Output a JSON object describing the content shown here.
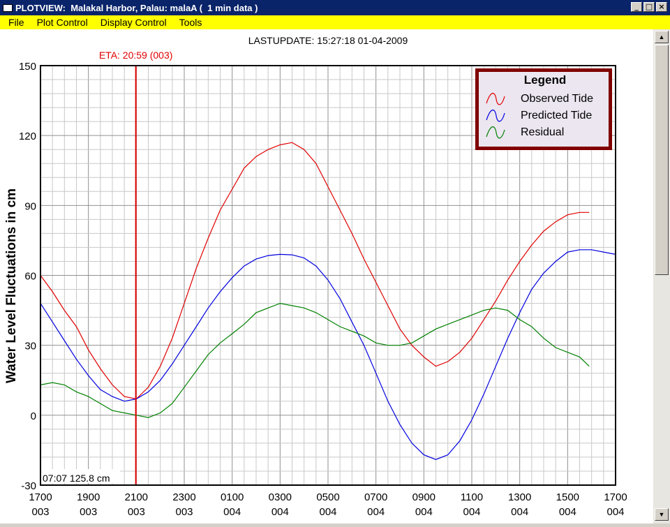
{
  "window": {
    "title": "PLOTVIEW:  Malakal Harbor, Palau: malaA (  1 min data )",
    "controls": {
      "minimize": "_",
      "maximize": "□",
      "close": "×"
    }
  },
  "menu": [
    "File",
    "Plot Control",
    "Display Control",
    "Tools"
  ],
  "plot": {
    "last_update": "LASTUPDATE: 15:27:18  01-04-2009",
    "eta_label": "ETA: 20:59 (003)",
    "cursor_readout": "07:07 125.8 cm"
  },
  "legend": {
    "title": "Legend",
    "items": [
      {
        "label": "Observed Tide",
        "color": "#e00000"
      },
      {
        "label": "Predicted Tide",
        "color": "#0000e0"
      },
      {
        "label": "Residual",
        "color": "#008000"
      }
    ]
  },
  "chart_data": {
    "type": "line",
    "ylabel": "Water Level Fluctuations in cm",
    "ylim": [
      -30,
      150
    ],
    "yticks": [
      150,
      120,
      90,
      60,
      30,
      0,
      -30
    ],
    "xlim": [
      0,
      24
    ],
    "x_unit": "hours after 1700 day 003",
    "xticks": [
      {
        "time": "1700",
        "day": "003"
      },
      {
        "time": "1900",
        "day": "003"
      },
      {
        "time": "2100",
        "day": "003"
      },
      {
        "time": "2300",
        "day": "003"
      },
      {
        "time": "0100",
        "day": "004"
      },
      {
        "time": "0300",
        "day": "004"
      },
      {
        "time": "0500",
        "day": "004"
      },
      {
        "time": "0700",
        "day": "004"
      },
      {
        "time": "0900",
        "day": "004"
      },
      {
        "time": "1100",
        "day": "004"
      },
      {
        "time": "1300",
        "day": "004"
      },
      {
        "time": "1500",
        "day": "004"
      },
      {
        "time": "1700",
        "day": "004"
      }
    ],
    "eta_x": 3.98,
    "grid": true,
    "legend_position": "top-right",
    "series": [
      {
        "name": "Observed Tide",
        "color": "#e00000",
        "x": [
          0,
          0.5,
          1,
          1.5,
          2,
          2.5,
          3,
          3.5,
          4,
          4.5,
          5,
          5.5,
          6,
          6.5,
          7,
          7.5,
          8,
          8.5,
          9,
          9.5,
          10,
          10.5,
          11,
          11.5,
          12,
          12.5,
          13,
          13.5,
          14,
          14.5,
          15,
          15.5,
          16,
          16.5,
          17,
          17.5,
          18,
          18.5,
          19,
          19.5,
          20,
          20.5,
          21,
          21.5,
          22,
          22.5,
          22.9
        ],
        "y": [
          60,
          53,
          45,
          38,
          28,
          20,
          13,
          8,
          7,
          12,
          21,
          33,
          48,
          63,
          76,
          88,
          97,
          106,
          111,
          114,
          116,
          117,
          114,
          108,
          98,
          88,
          78,
          67,
          57,
          47,
          37,
          30,
          25,
          21,
          23,
          27,
          33,
          41,
          49,
          58,
          66,
          73,
          79,
          83,
          86,
          87,
          87
        ]
      },
      {
        "name": "Predicted Tide",
        "color": "#0000e0",
        "x": [
          0,
          0.5,
          1,
          1.5,
          2,
          2.5,
          3,
          3.5,
          4,
          4.5,
          5,
          5.5,
          6,
          6.5,
          7,
          7.5,
          8,
          8.5,
          9,
          9.5,
          10,
          10.5,
          11,
          11.5,
          12,
          12.5,
          13,
          13.5,
          14,
          14.5,
          15,
          15.5,
          16,
          16.5,
          17,
          17.5,
          18,
          18.5,
          19,
          19.5,
          20,
          20.5,
          21,
          21.5,
          22,
          22.5,
          23,
          23.5,
          24
        ],
        "y": [
          48,
          40,
          32,
          24,
          17,
          11,
          8,
          6,
          7,
          10,
          15,
          22,
          30,
          38,
          46,
          53,
          59,
          64,
          67,
          68.5,
          69,
          68.8,
          67.5,
          64,
          58,
          50,
          40,
          30,
          18,
          6,
          -4,
          -12,
          -17,
          -19,
          -17,
          -11,
          -2,
          9,
          21,
          33,
          44,
          54,
          61,
          66,
          70,
          71,
          71,
          70,
          69
        ]
      },
      {
        "name": "Residual",
        "color": "#008000",
        "x": [
          0,
          0.5,
          1,
          1.5,
          2,
          2.5,
          3,
          3.5,
          4,
          4.5,
          5,
          5.5,
          6,
          6.5,
          7,
          7.5,
          8,
          8.5,
          9,
          9.5,
          10,
          10.5,
          11,
          11.5,
          12,
          12.5,
          13,
          13.5,
          14,
          14.5,
          15,
          15.5,
          16,
          16.5,
          17,
          17.5,
          18,
          18.5,
          19,
          19.5,
          20,
          20.5,
          21,
          21.5,
          22,
          22.5,
          22.9
        ],
        "y": [
          13,
          14,
          13,
          10,
          8,
          5,
          2,
          1,
          0,
          -1,
          1,
          5,
          12,
          19,
          26,
          31,
          35,
          39,
          44,
          46,
          48,
          47,
          46,
          44,
          41,
          38,
          36,
          34,
          31,
          30,
          30,
          31,
          34,
          37,
          39,
          41,
          43,
          45,
          46,
          45,
          41,
          38,
          33,
          29,
          27,
          25,
          21
        ]
      }
    ]
  }
}
